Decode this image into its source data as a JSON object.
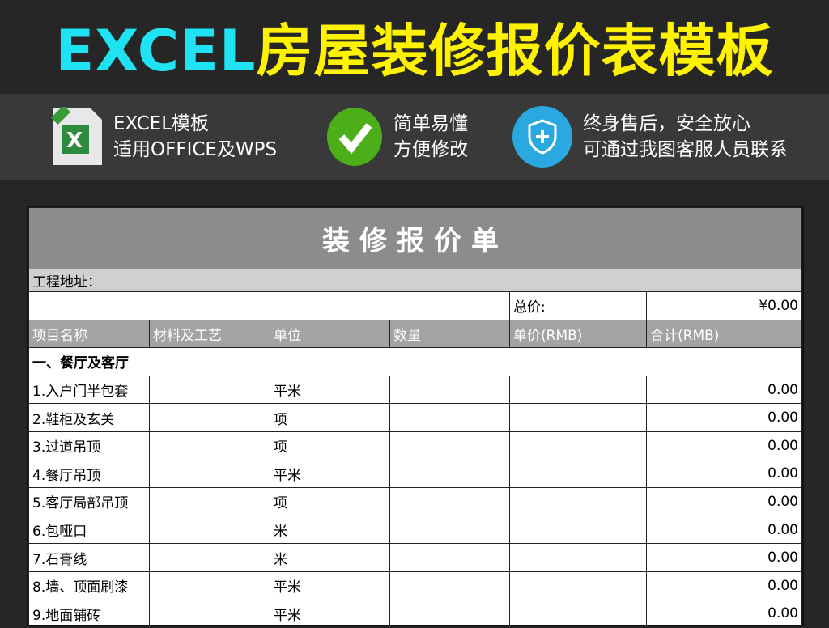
{
  "banner": {
    "title_en": "EXCEL",
    "title_zh": "房屋装修报价表模板"
  },
  "features": [
    {
      "icon": "xlsx-file-icon",
      "line1": "EXCEL模板",
      "line2": "适用OFFICE及WPS"
    },
    {
      "icon": "green-check-icon",
      "line1": "简单易懂",
      "line2": "方便修改"
    },
    {
      "icon": "shield-plus-icon",
      "line1": "终身售后，安全放心",
      "line2": "可通过我图客服人员联系"
    }
  ],
  "sheet": {
    "title": "装修报价单",
    "address_label": "工程地址：",
    "total_label": "总价:",
    "total_value": "¥0.00",
    "headers": [
      "项目名称",
      "材料及工艺",
      "单位",
      "数量",
      "单价(RMB)",
      "合计(RMB)"
    ],
    "section": "一、餐厅及客厅",
    "rows": [
      {
        "name": "1.入户门半包套",
        "unit": "平米",
        "total": "0.00"
      },
      {
        "name": "2.鞋柜及玄关",
        "unit": "项",
        "total": "0.00"
      },
      {
        "name": "3.过道吊顶",
        "unit": "项",
        "total": "0.00"
      },
      {
        "name": "4.餐厅吊顶",
        "unit": "平米",
        "total": "0.00"
      },
      {
        "name": "5.客厅局部吊顶",
        "unit": "项",
        "total": "0.00"
      },
      {
        "name": "6.包哑口",
        "unit": "米",
        "total": "0.00"
      },
      {
        "name": "7.石膏线",
        "unit": "米",
        "total": "0.00"
      },
      {
        "name": "8.墙、顶面刷漆",
        "unit": "平米",
        "total": "0.00"
      },
      {
        "name": "9.地面铺砖",
        "unit": "平米",
        "total": "0.00"
      }
    ]
  },
  "colors": {
    "title_en": "#1fe3f2",
    "title_zh": "#fff200",
    "header_gray": "#a3a3a3",
    "title_gray": "#8c8c8c"
  }
}
